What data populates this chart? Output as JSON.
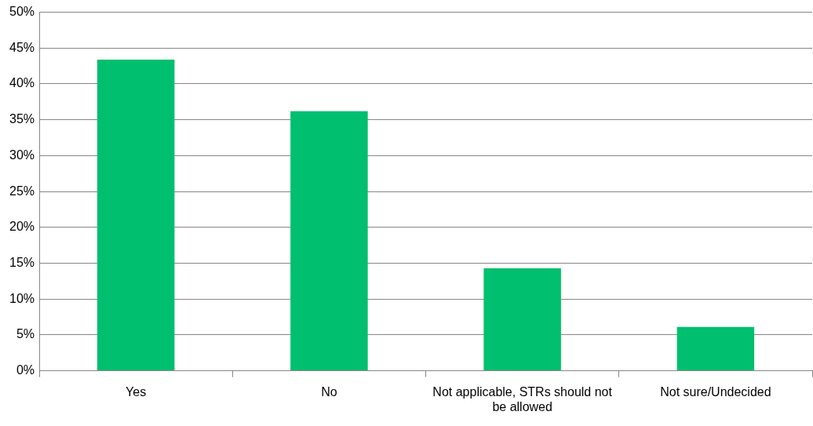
{
  "chart_data": {
    "type": "bar",
    "categories": [
      "Yes",
      "No",
      "Not applicable, STRs should not be allowed",
      "Not sure/Undecided"
    ],
    "values": [
      43.4,
      36.2,
      14.3,
      6.1
    ],
    "color": "#00bf6f",
    "ylim": [
      0,
      50
    ],
    "yticks": [
      {
        "value": 0,
        "label": "0%"
      },
      {
        "value": 5,
        "label": "5%"
      },
      {
        "value": 10,
        "label": "10%"
      },
      {
        "value": 15,
        "label": "15%"
      },
      {
        "value": 20,
        "label": "20%"
      },
      {
        "value": 25,
        "label": "25%"
      },
      {
        "value": 30,
        "label": "30%"
      },
      {
        "value": 35,
        "label": "35%"
      },
      {
        "value": 40,
        "label": "40%"
      },
      {
        "value": 45,
        "label": "45%"
      },
      {
        "value": 50,
        "label": "50%"
      }
    ],
    "grid": "y",
    "legend": false
  }
}
